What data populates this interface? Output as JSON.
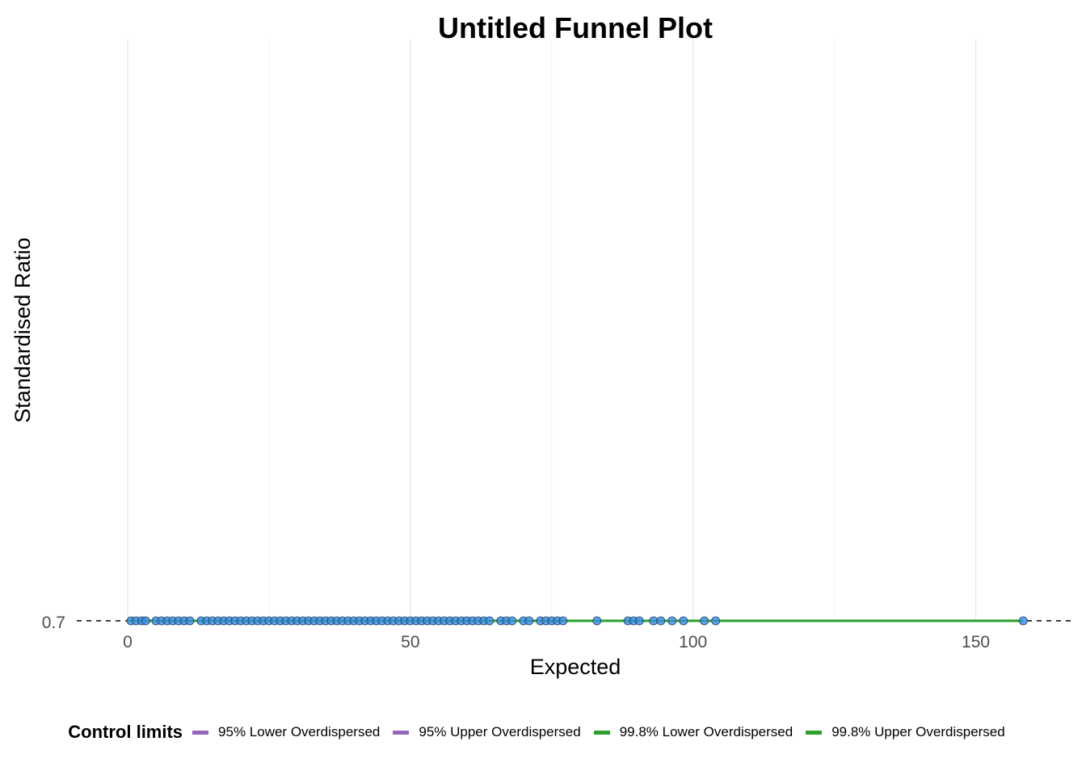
{
  "chart_data": {
    "type": "scatter",
    "title": "Untitled Funnel Plot",
    "xlabel": "Expected",
    "ylabel": "Standardised Ratio",
    "xlim": [
      -9,
      167.5
    ],
    "x_ticks": [
      0,
      50,
      100,
      150
    ],
    "x_tick_labels": [
      "0",
      "50",
      "100",
      "150"
    ],
    "y_ticks": [
      0.7
    ],
    "y_tick_labels": [
      "0.7"
    ],
    "grid": "vertical major and minor",
    "target_line": {
      "y": 0.7,
      "style": "dashed",
      "color": "#000000"
    },
    "points": {
      "y": 0.7,
      "x": [
        0.6,
        1.5,
        2.5,
        3.2,
        5,
        6,
        7,
        8,
        9,
        10,
        11,
        13,
        14,
        15,
        16,
        17,
        18,
        19,
        20,
        21,
        22,
        23,
        24,
        25,
        26,
        27,
        28,
        29,
        30,
        31,
        32,
        33,
        34,
        35,
        36,
        37,
        38,
        39,
        40,
        41,
        42,
        43,
        44,
        45,
        46,
        47,
        48,
        49,
        50,
        51,
        52,
        53,
        54,
        55,
        56,
        57,
        58,
        59,
        60,
        61,
        62,
        63,
        64,
        66,
        67,
        68,
        70,
        71,
        73,
        74,
        75,
        76,
        77,
        83,
        88.5,
        89.5,
        90.5,
        93,
        94.3,
        96.3,
        98.3,
        102,
        104,
        158.4
      ],
      "fill": "#3a8fe0",
      "stroke": "#1a3a6a"
    },
    "limits_x_range": [
      0,
      158.4
    ],
    "legend": {
      "title": "Control limits",
      "position": "bottom",
      "entries": [
        {
          "label": "95% Lower Overdispersed",
          "color": "#9467bd",
          "y": 0.7
        },
        {
          "label": "95% Upper Overdispersed",
          "color": "#9467bd",
          "y": 0.7
        },
        {
          "label": "99.8% Lower Overdispersed",
          "color": "#2ca02c",
          "y": 0.7
        },
        {
          "label": "99.8% Upper Overdispersed",
          "color": "#2ca02c",
          "y": 0.7
        }
      ]
    }
  }
}
